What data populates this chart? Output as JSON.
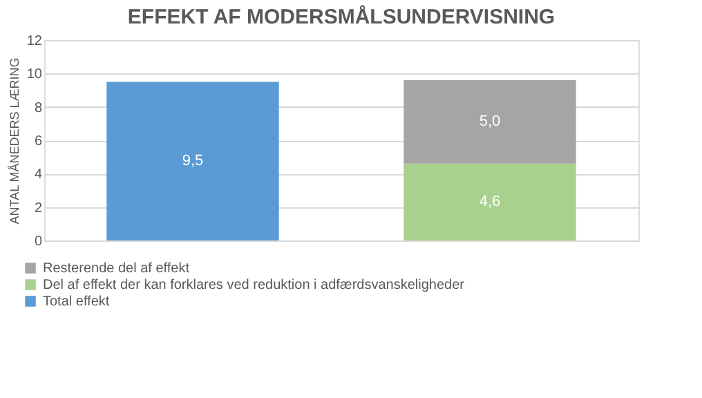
{
  "chart_data": {
    "type": "bar",
    "title": "EFFEKT AF MODERSMÅLSUNDERVISNING",
    "ylabel": "ANTAL MÅNEDERS LÆRING",
    "categories": [
      null,
      null
    ],
    "stacked": true,
    "series": [
      {
        "name": "Total effekt",
        "color": "#5b9bd5",
        "values": [
          9.5,
          null
        ],
        "value_labels": [
          "9,5",
          null
        ]
      },
      {
        "name": "Del af effekt der kan forklares ved reduktion i adfærdsvanskeligheder",
        "color": "#a9d18e",
        "values": [
          null,
          4.6
        ],
        "value_labels": [
          null,
          "4,6"
        ]
      },
      {
        "name": "Resterende del af effekt",
        "color": "#a5a5a5",
        "values": [
          null,
          5.0
        ],
        "value_labels": [
          null,
          "5,0"
        ]
      }
    ],
    "ylim": [
      0,
      12
    ],
    "yticks": [
      0,
      2,
      4,
      6,
      8,
      10,
      12
    ],
    "grid": "y",
    "legend": "bottom left",
    "tick_labels": "y"
  }
}
